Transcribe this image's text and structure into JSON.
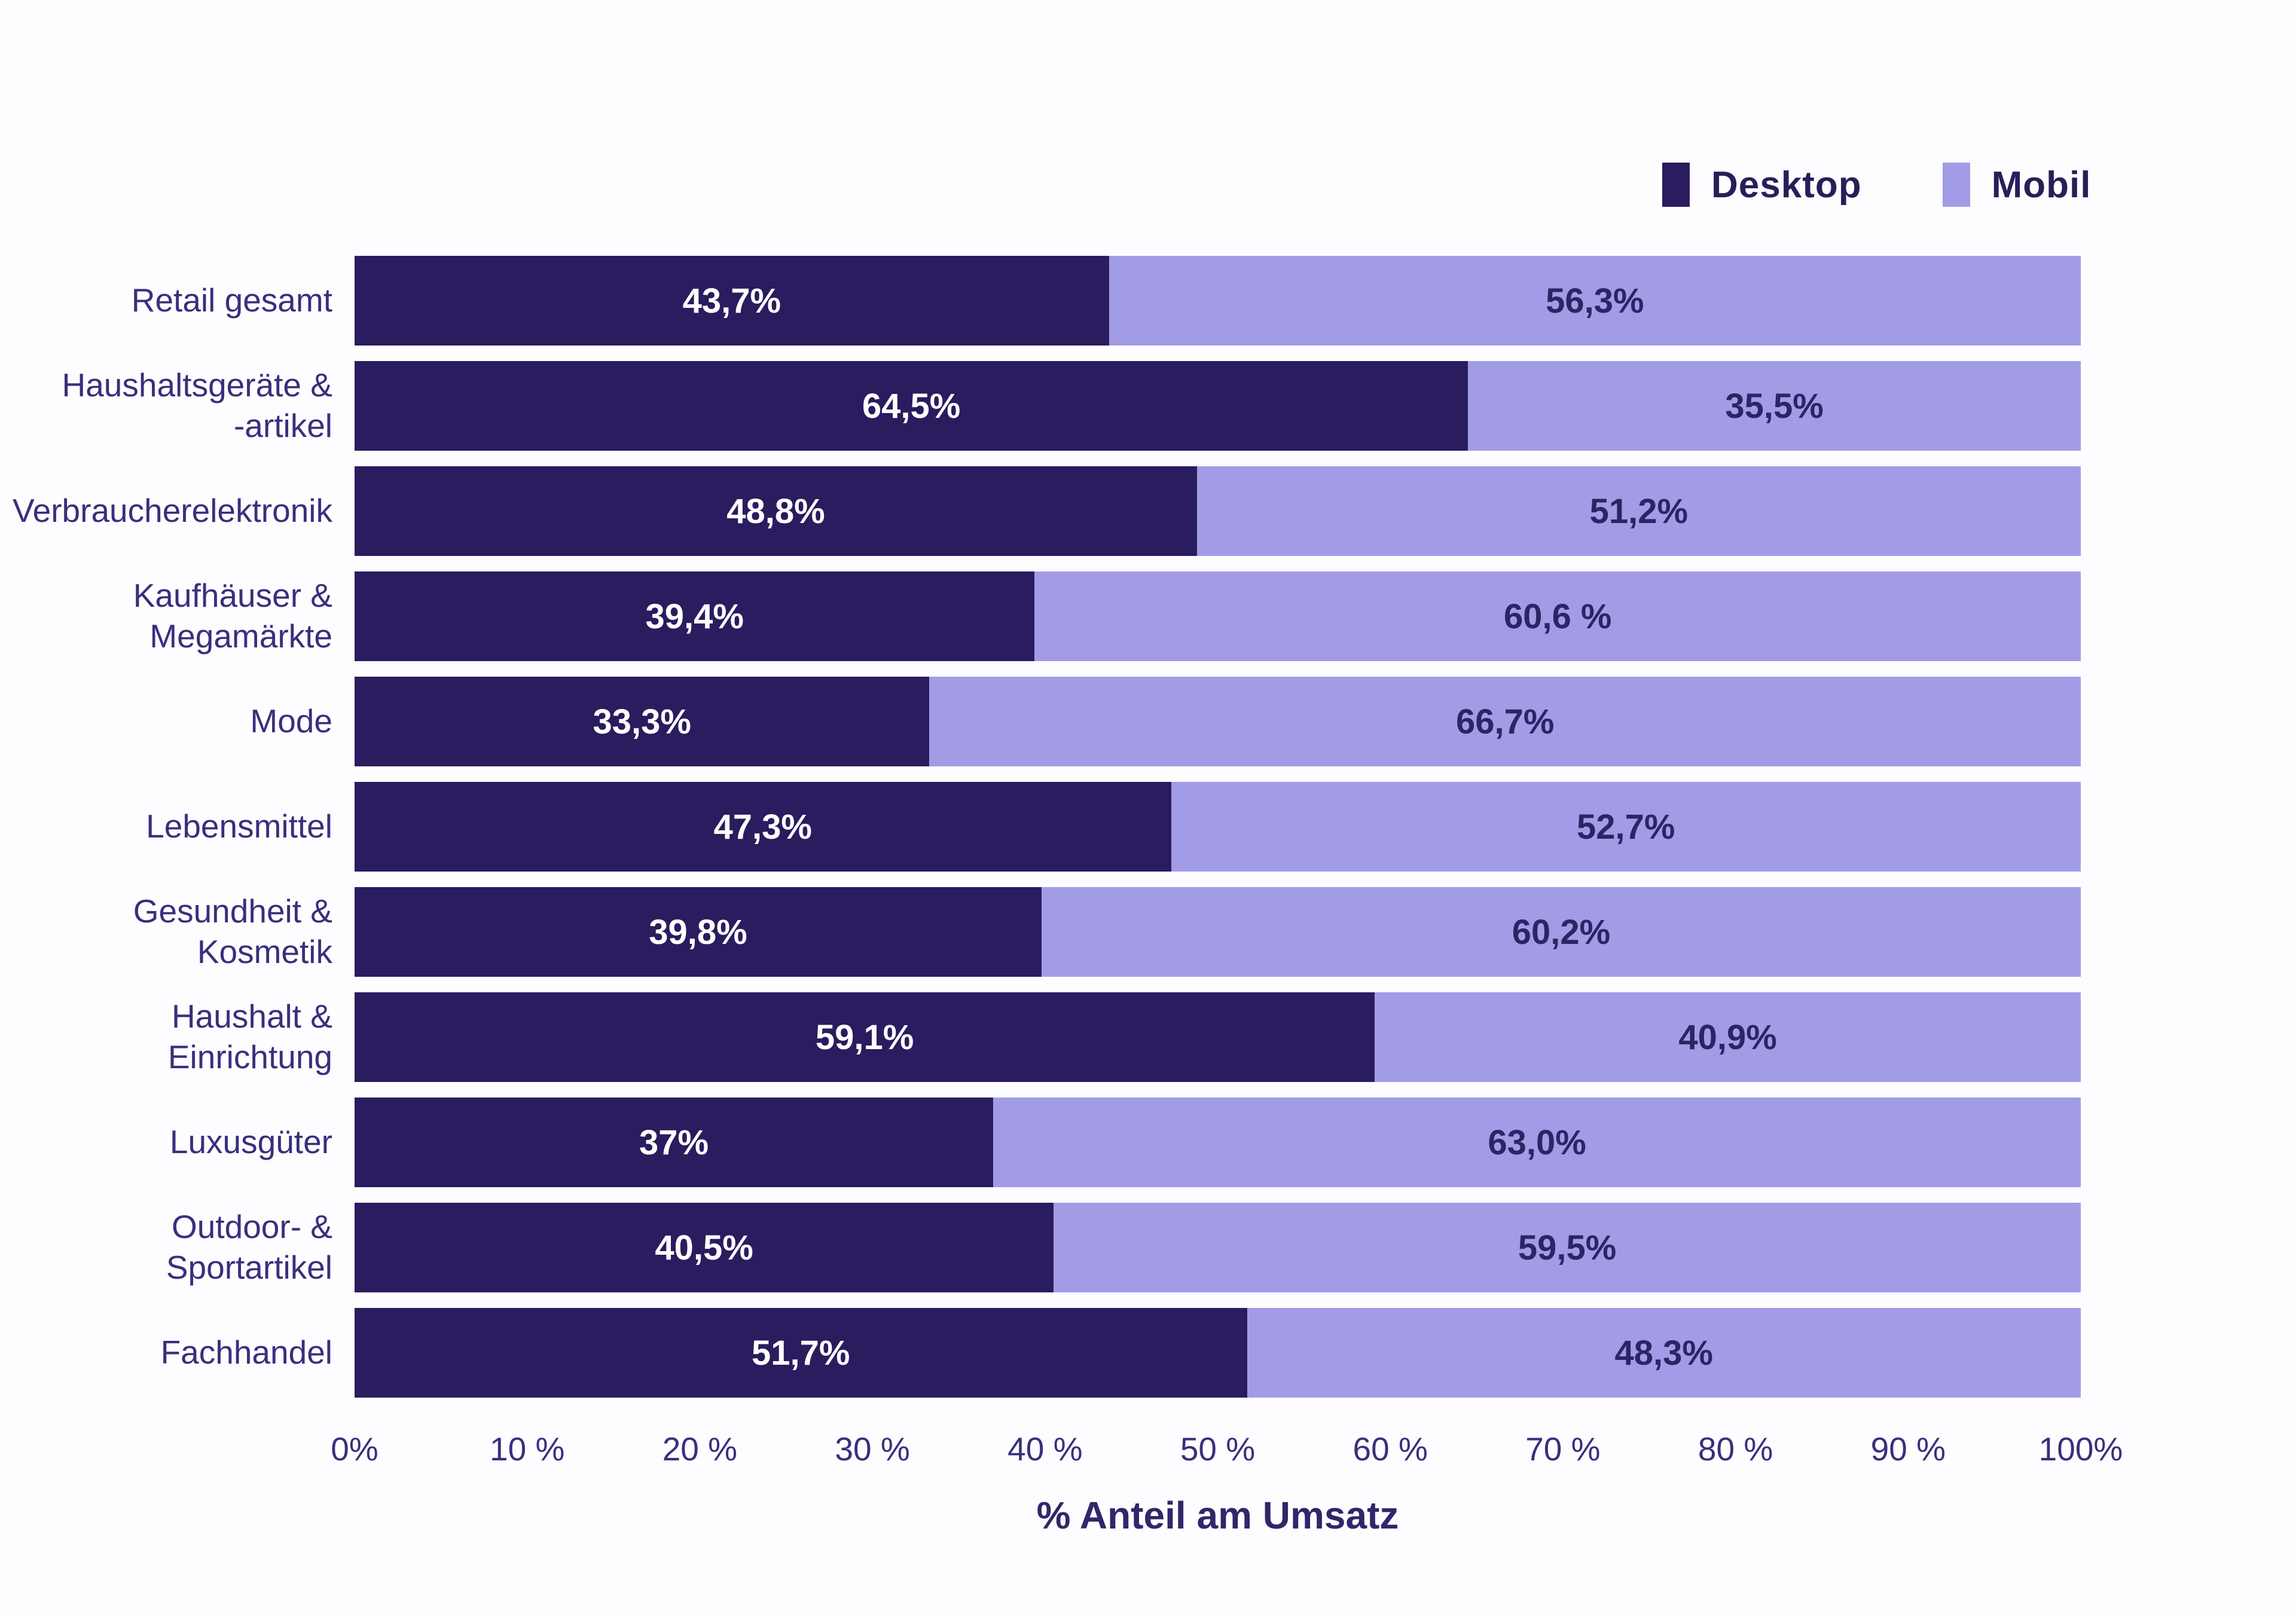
{
  "colors": {
    "background": "#fdfcff",
    "desktop": "#2a1c5e",
    "mobil": "#a29ce6",
    "value_text_on_desktop": "#ffffff",
    "value_text_on_mobil": "#2d2466",
    "axis_text": "#37307c",
    "legend_text": "#281f58"
  },
  "legend": {
    "items": [
      {
        "label": "Desktop",
        "color": "#2a1c5e"
      },
      {
        "label": "Mobil",
        "color": "#a29ce6"
      }
    ]
  },
  "chart_data": {
    "type": "bar",
    "orientation": "horizontal",
    "stacked": true,
    "title": "",
    "xlabel": "% Anteil am Umsatz",
    "ylabel": "",
    "xlim": [
      0,
      100
    ],
    "grid": false,
    "legend_position": "top-right",
    "x_ticks": [
      "0%",
      "10 %",
      "20 %",
      "30 %",
      "40 %",
      "50 %",
      "60 %",
      "70 %",
      "80 %",
      "90 %",
      "100%"
    ],
    "categories": [
      "Retail gesamt",
      "Haushaltsgeräte &\n-artikel",
      "Verbraucherelektronik",
      "Kaufhäuser &\nMegamärkte",
      "Mode",
      "Lebensmittel",
      "Gesundheit &\nKosmetik",
      "Haushalt &\nEinrichtung",
      "Luxusgüter",
      "Outdoor- &\nSportartikel",
      "Fachhandel"
    ],
    "series": [
      {
        "name": "Desktop",
        "values": [
          43.7,
          64.5,
          48.8,
          39.4,
          33.3,
          47.3,
          39.8,
          59.1,
          37,
          40.5,
          51.7
        ],
        "labels": [
          "43,7%",
          "64,5%",
          "48,8%",
          "39,4%",
          "33,3%",
          "47,3%",
          "39,8%",
          "59,1%",
          "37%",
          "40,5%",
          "51,7%"
        ]
      },
      {
        "name": "Mobil",
        "values": [
          56.3,
          35.5,
          51.2,
          60.6,
          66.7,
          52.7,
          60.2,
          40.9,
          63.0,
          59.5,
          48.3
        ],
        "labels": [
          "56,3%",
          "35,5%",
          "51,2%",
          "60,6 %",
          "66,7%",
          "52,7%",
          "60,2%",
          "40,9%",
          "63,0%",
          "59,5%",
          "48,3%"
        ]
      }
    ]
  }
}
